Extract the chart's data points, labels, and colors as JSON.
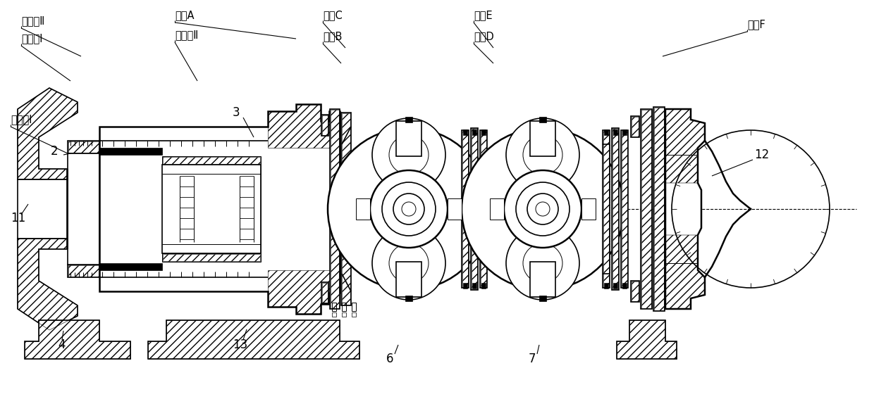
{
  "bg_color": "#ffffff",
  "line_color": "#000000",
  "labels": {
    "wai_hua_jian_II": "外花键Ⅱ",
    "nei_hua_jian_I": "内花键Ⅰ",
    "wai_hua_jian_I": "外花键Ⅰ",
    "nei_hua_jian_II": "内花键Ⅱ",
    "zhi_kou_A": "止口A",
    "zhi_kou_B": "止口B",
    "zhi_kou_C": "止口C",
    "zhi_kou_D": "止口D",
    "zhi_kou_E": "止口E",
    "zhi_kou_F": "止口F",
    "num_2": "2",
    "num_3": "3",
    "num_4": "4",
    "num_6": "6",
    "num_7": "7",
    "num_11": "11",
    "num_12": "12",
    "num_13": "13"
  },
  "fig_width": 12.4,
  "fig_height": 5.94
}
